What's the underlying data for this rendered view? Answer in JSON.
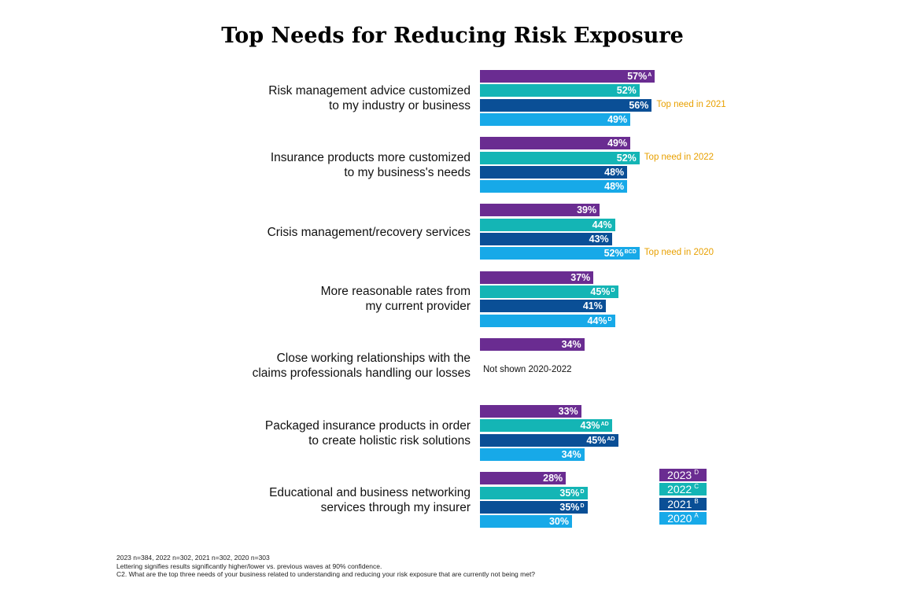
{
  "chart_data": {
    "type": "bar",
    "orientation": "horizontal",
    "title": "Top Needs for Reducing Risk Exposure",
    "series_names": [
      "2023",
      "2022",
      "2021",
      "2020"
    ],
    "series_letters": [
      "D",
      "C",
      "B",
      "A"
    ],
    "colors": [
      "#6a2c91",
      "#14b5b5",
      "#0a4f96",
      "#17a9e8"
    ],
    "legend": [
      {
        "label": "2023",
        "letter": "D"
      },
      {
        "label": "2022",
        "letter": "C"
      },
      {
        "label": "2021",
        "letter": "B"
      },
      {
        "label": "2020",
        "letter": "A"
      }
    ],
    "categories": [
      {
        "label_lines": [
          "Risk management advice customized",
          "to my industry or business"
        ],
        "values": [
          57,
          52,
          56,
          49
        ],
        "sig": [
          "A",
          "",
          "",
          ""
        ],
        "annotation_index": 2,
        "annotation": "Top need in 2021"
      },
      {
        "label_lines": [
          "Insurance products more customized",
          "to my business's needs"
        ],
        "values": [
          49,
          52,
          48,
          48
        ],
        "sig": [
          "",
          "",
          "",
          ""
        ],
        "annotation_index": 1,
        "annotation": "Top need in 2022"
      },
      {
        "label_lines": [
          "Crisis management/recovery services"
        ],
        "values": [
          39,
          44,
          43,
          52
        ],
        "sig": [
          "",
          "",
          "",
          "BCD"
        ],
        "annotation_index": 3,
        "annotation": "Top need in 2020"
      },
      {
        "label_lines": [
          "More reasonable rates from",
          "my current provider"
        ],
        "values": [
          37,
          45,
          41,
          44
        ],
        "sig": [
          "",
          "D",
          "",
          "D"
        ]
      },
      {
        "label_lines": [
          "Close working relationships with the",
          "claims professionals handling our losses"
        ],
        "values": [
          34,
          null,
          null,
          null
        ],
        "sig": [
          "",
          "",
          "",
          ""
        ],
        "note": "Not shown 2020-2022"
      },
      {
        "label_lines": [
          "Packaged insurance products in order",
          "to create holistic risk solutions"
        ],
        "values": [
          33,
          43,
          45,
          34
        ],
        "sig": [
          "",
          "AD",
          "AD",
          ""
        ]
      },
      {
        "label_lines": [
          "Educational and business networking",
          "services through my insurer"
        ],
        "values": [
          28,
          35,
          35,
          30
        ],
        "sig": [
          "",
          "D",
          "D",
          ""
        ]
      }
    ],
    "footnotes": [
      "2023 n=384, 2022 n=302, 2021 n=302, 2020 n=303",
      "Lettering signifies results significantly higher/lower vs. previous waves at 90% confidence.",
      "C2. What are the top three needs of your business related to understanding and reducing your risk exposure that are currently not being met?"
    ]
  }
}
